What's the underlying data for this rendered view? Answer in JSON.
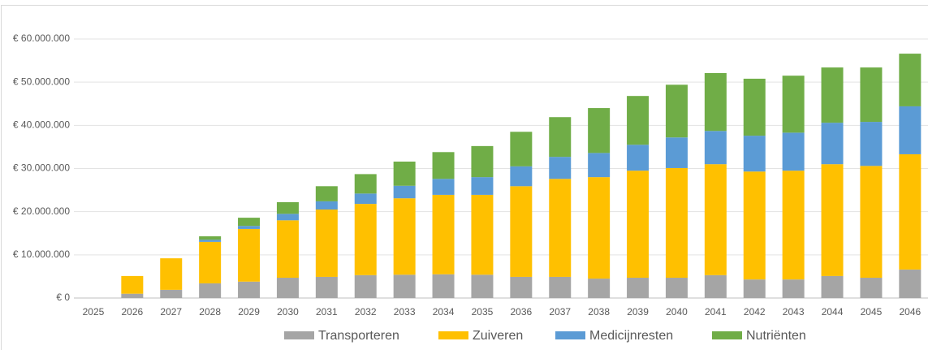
{
  "chart_data": {
    "type": "stacked-bar",
    "categories": [
      "2025",
      "2026",
      "2027",
      "2028",
      "2029",
      "2030",
      "2031",
      "2032",
      "2033",
      "2034",
      "2035",
      "2036",
      "2037",
      "2038",
      "2039",
      "2040",
      "2041",
      "2042",
      "2043",
      "2044",
      "2045",
      "2046"
    ],
    "series": [
      {
        "name": "Transporteren",
        "color": "#a5a5a5",
        "values": [
          0,
          1000000,
          1900000,
          3400000,
          3800000,
          4700000,
          4900000,
          5300000,
          5400000,
          5500000,
          5400000,
          4900000,
          4900000,
          4500000,
          4700000,
          4700000,
          5300000,
          4300000,
          4300000,
          5100000,
          4700000,
          6600000
        ]
      },
      {
        "name": "Zuiveren",
        "color": "#ffc000",
        "values": [
          0,
          4100000,
          7300000,
          9600000,
          12200000,
          13300000,
          15600000,
          16500000,
          17700000,
          18400000,
          18500000,
          21000000,
          22700000,
          23500000,
          24800000,
          25400000,
          25700000,
          25000000,
          25200000,
          25900000,
          25900000,
          26700000
        ]
      },
      {
        "name": "Medicijnresten",
        "color": "#5b9bd5",
        "values": [
          0,
          0,
          0,
          500000,
          700000,
          1500000,
          1900000,
          2400000,
          2900000,
          3700000,
          4100000,
          4600000,
          5100000,
          5600000,
          6000000,
          7100000,
          7700000,
          8300000,
          8800000,
          9600000,
          10200000,
          11100000
        ]
      },
      {
        "name": "Nutriënten",
        "color": "#70ad47",
        "values": [
          0,
          0,
          0,
          800000,
          1900000,
          2700000,
          3500000,
          4500000,
          5600000,
          6200000,
          7200000,
          8000000,
          9200000,
          10400000,
          11300000,
          12200000,
          13400000,
          13200000,
          13200000,
          12800000,
          12600000,
          12200000
        ]
      }
    ],
    "ylim": [
      0,
      60000000
    ],
    "yticks": [
      {
        "value": 0,
        "label": "€ 0"
      },
      {
        "value": 10000000,
        "label": "€ 10.000.000"
      },
      {
        "value": 20000000,
        "label": "€ 20.000.000"
      },
      {
        "value": 30000000,
        "label": "€ 30.000.000"
      },
      {
        "value": 40000000,
        "label": "€ 40.000.000"
      },
      {
        "value": 50000000,
        "label": "€ 50.000.000"
      },
      {
        "value": 60000000,
        "label": "€ 60.000.000"
      }
    ],
    "grid": true,
    "legend": "bottom"
  }
}
